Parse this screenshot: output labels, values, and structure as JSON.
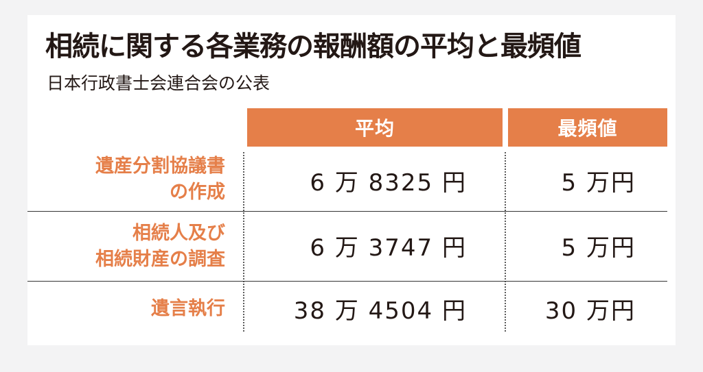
{
  "title": "相続に関する各業務の報酬額の平均と最頻値",
  "subtitle": "日本行政書士会連合会の公表",
  "table": {
    "headers": {
      "average": "平均",
      "mode": "最頻値"
    },
    "rows": [
      {
        "label_line1": "遺産分割協議書",
        "label_line2": "の作成",
        "average": "6 万 8325 円",
        "mode": "5 万円"
      },
      {
        "label_line1": "相続人及び",
        "label_line2": "相続財産の調査",
        "average": "6 万 3747 円",
        "mode": "5 万円"
      },
      {
        "label_line1": "遺言執行",
        "average": "38 万 4504 円",
        "mode": "30 万円"
      }
    ]
  },
  "colors": {
    "accent": "#e57f49",
    "text": "#231815",
    "background": "#ffffff"
  }
}
